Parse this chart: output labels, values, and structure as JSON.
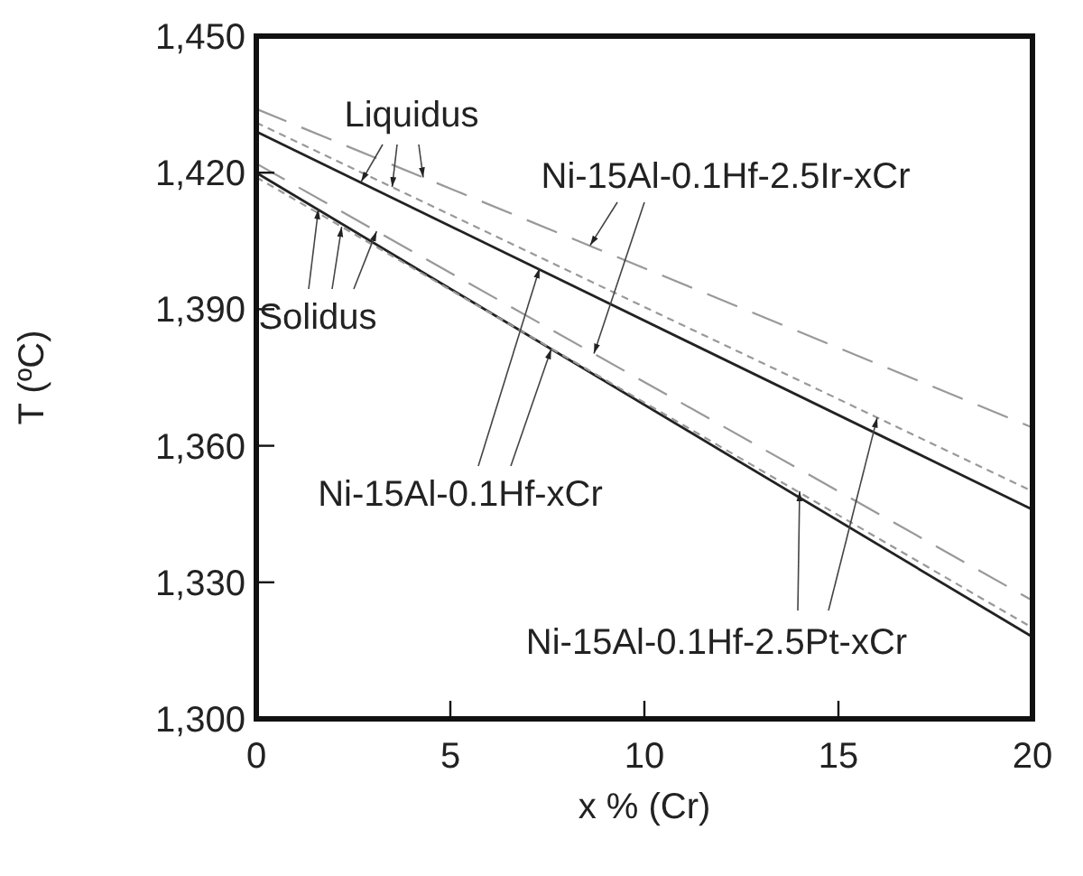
{
  "chart_data": {
    "type": "line",
    "xlabel": "x % (Cr)",
    "ylabel": "T (ºC)",
    "x": [
      0,
      20
    ],
    "xlim": [
      0,
      20
    ],
    "xticks": [
      0,
      5,
      10,
      15,
      20
    ],
    "ylim": [
      1300,
      1450
    ],
    "yticks": [
      {
        "value": 1300,
        "label": "1,300"
      },
      {
        "value": 1330,
        "label": "1,330"
      },
      {
        "value": 1360,
        "label": "1,360"
      },
      {
        "value": 1390,
        "label": "1,390"
      },
      {
        "value": 1420,
        "label": "1,420"
      },
      {
        "value": 1450,
        "label": "1,450"
      }
    ],
    "grid": false,
    "marker": "none",
    "series": [
      {
        "color": "#222222",
        "line_style": "solid",
        "values": [
          1429,
          1346
        ]
      },
      {
        "color": "#222222",
        "line_style": "solid",
        "values": [
          1420,
          1318
        ]
      },
      {
        "color": "#999999",
        "line_style": "dashed",
        "values": [
          1434,
          1364
        ]
      },
      {
        "color": "#999999",
        "line_style": "dashed",
        "values": [
          1422,
          1326
        ]
      },
      {
        "color": "#999999",
        "line_style": "dotted",
        "values": [
          1431,
          1350
        ]
      },
      {
        "color": "#999999",
        "line_style": "dotted",
        "values": [
          1419,
          1320
        ]
      }
    ],
    "annotations": [
      {
        "text": "Liquidus",
        "x": 2.7,
        "y": 1418
      },
      {
        "text": "Ni-15Al-0.1Hf-2.5Ir-xCr",
        "x": 8.6,
        "y": 1404
      },
      {
        "text": "Solidus",
        "x": 1.6,
        "y": 1412
      },
      {
        "text": "Ni-15Al-0.1Hf-xCr",
        "x": 7.3,
        "y": 1399
      },
      {
        "text": "Ni-15Al-0.1Hf-2.5Pt-xCr",
        "x": 14.0,
        "y": 1350
      }
    ]
  }
}
